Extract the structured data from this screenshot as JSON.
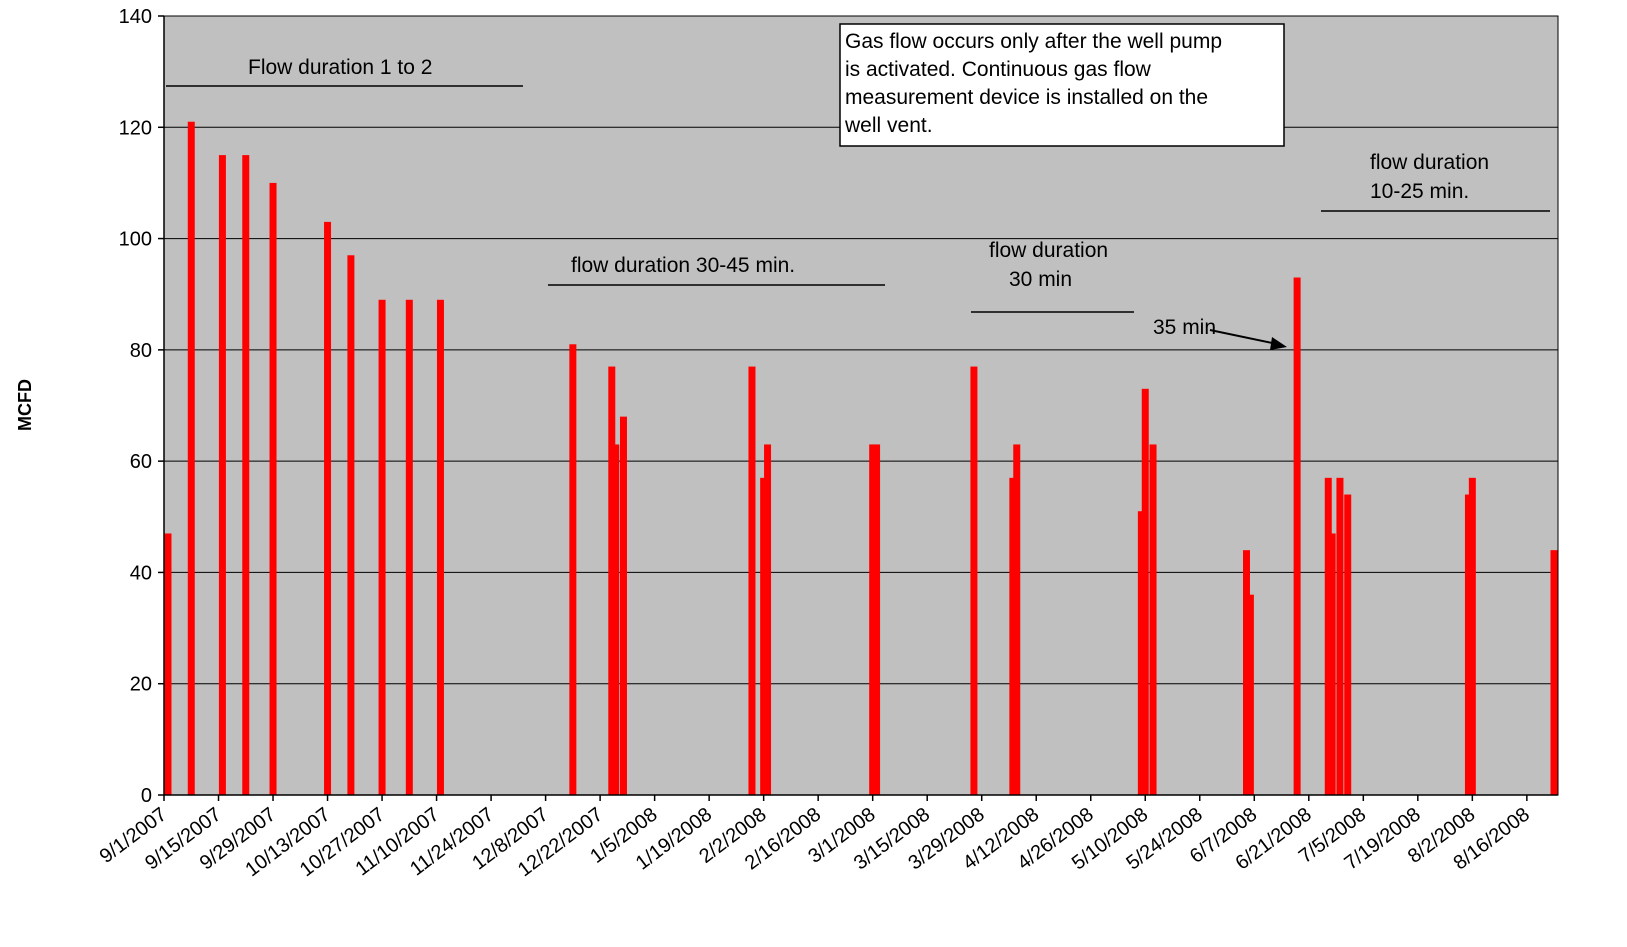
{
  "chart_data": {
    "type": "bar",
    "title": "",
    "xlabel": "",
    "ylabel": "MCFD",
    "ylim": [
      0,
      140
    ],
    "yticks": [
      "0",
      "20",
      "40",
      "60",
      "80",
      "100",
      "120",
      "140"
    ],
    "xlim": [
      "2007-09-01",
      "2008-08-24"
    ],
    "xtick_labels": [
      "9/1/2007",
      "9/15/2007",
      "9/29/2007",
      "10/13/2007",
      "10/27/2007",
      "11/10/2007",
      "11/24/2007",
      "12/8/2007",
      "12/22/2007",
      "1/5/2008",
      "1/19/2008",
      "2/2/2008",
      "2/16/2008",
      "3/1/2008",
      "3/15/2008",
      "3/29/2008",
      "4/12/2008",
      "4/26/2008",
      "5/10/2008",
      "5/24/2008",
      "6/7/2008",
      "6/21/2008",
      "7/5/2008",
      "7/19/2008",
      "8/2/2008",
      "8/16/2008"
    ],
    "grid": true,
    "plot_background": "#c0c0c0",
    "bar_color": "#ff0000",
    "series": [
      {
        "points": [
          {
            "x": "2007-09-01",
            "y": 47
          },
          {
            "x": "2007-09-08",
            "y": 121
          },
          {
            "x": "2007-09-16",
            "y": 115
          },
          {
            "x": "2007-09-22",
            "y": 115
          },
          {
            "x": "2007-09-29",
            "y": 110
          },
          {
            "x": "2007-10-13",
            "y": 103
          },
          {
            "x": "2007-10-19",
            "y": 97
          },
          {
            "x": "2007-10-27",
            "y": 89
          },
          {
            "x": "2007-11-03",
            "y": 89
          },
          {
            "x": "2007-11-11",
            "y": 89
          },
          {
            "x": "2007-12-15",
            "y": 81
          },
          {
            "x": "2007-12-25",
            "y": 77
          },
          {
            "x": "2007-12-26",
            "y": 63
          },
          {
            "x": "2007-12-28",
            "y": 68
          },
          {
            "x": "2008-01-30",
            "y": 77
          },
          {
            "x": "2008-02-02",
            "y": 57
          },
          {
            "x": "2008-02-03",
            "y": 63
          },
          {
            "x": "2008-03-01",
            "y": 63
          },
          {
            "x": "2008-03-02",
            "y": 63
          },
          {
            "x": "2008-03-27",
            "y": 77
          },
          {
            "x": "2008-04-06",
            "y": 57
          },
          {
            "x": "2008-04-07",
            "y": 63
          },
          {
            "x": "2008-05-09",
            "y": 51
          },
          {
            "x": "2008-05-10",
            "y": 73
          },
          {
            "x": "2008-05-12",
            "y": 63
          },
          {
            "x": "2008-06-05",
            "y": 44
          },
          {
            "x": "2008-06-06",
            "y": 36
          },
          {
            "x": "2008-06-18",
            "y": 93
          },
          {
            "x": "2008-06-26",
            "y": 57
          },
          {
            "x": "2008-06-27",
            "y": 47
          },
          {
            "x": "2008-06-29",
            "y": 57
          },
          {
            "x": "2008-07-01",
            "y": 54
          },
          {
            "x": "2008-08-01",
            "y": 54
          },
          {
            "x": "2008-08-02",
            "y": 57
          },
          {
            "x": "2008-08-27",
            "y": 44
          }
        ]
      }
    ],
    "annotations": {
      "flow_1": "Flow duration 1 to 2",
      "flow_2": "flow duration 30-45 min.",
      "flow_3_line1": "flow duration",
      "flow_3_line2": "30 min",
      "flow_4": "35 min",
      "flow_5_line1": "flow duration",
      "flow_5_line2": "10-25 min.",
      "note_lines": [
        "Gas flow occurs only after the well pump",
        "is activated. Continuous gas flow",
        "measurement device is installed on the",
        "well vent."
      ]
    }
  }
}
